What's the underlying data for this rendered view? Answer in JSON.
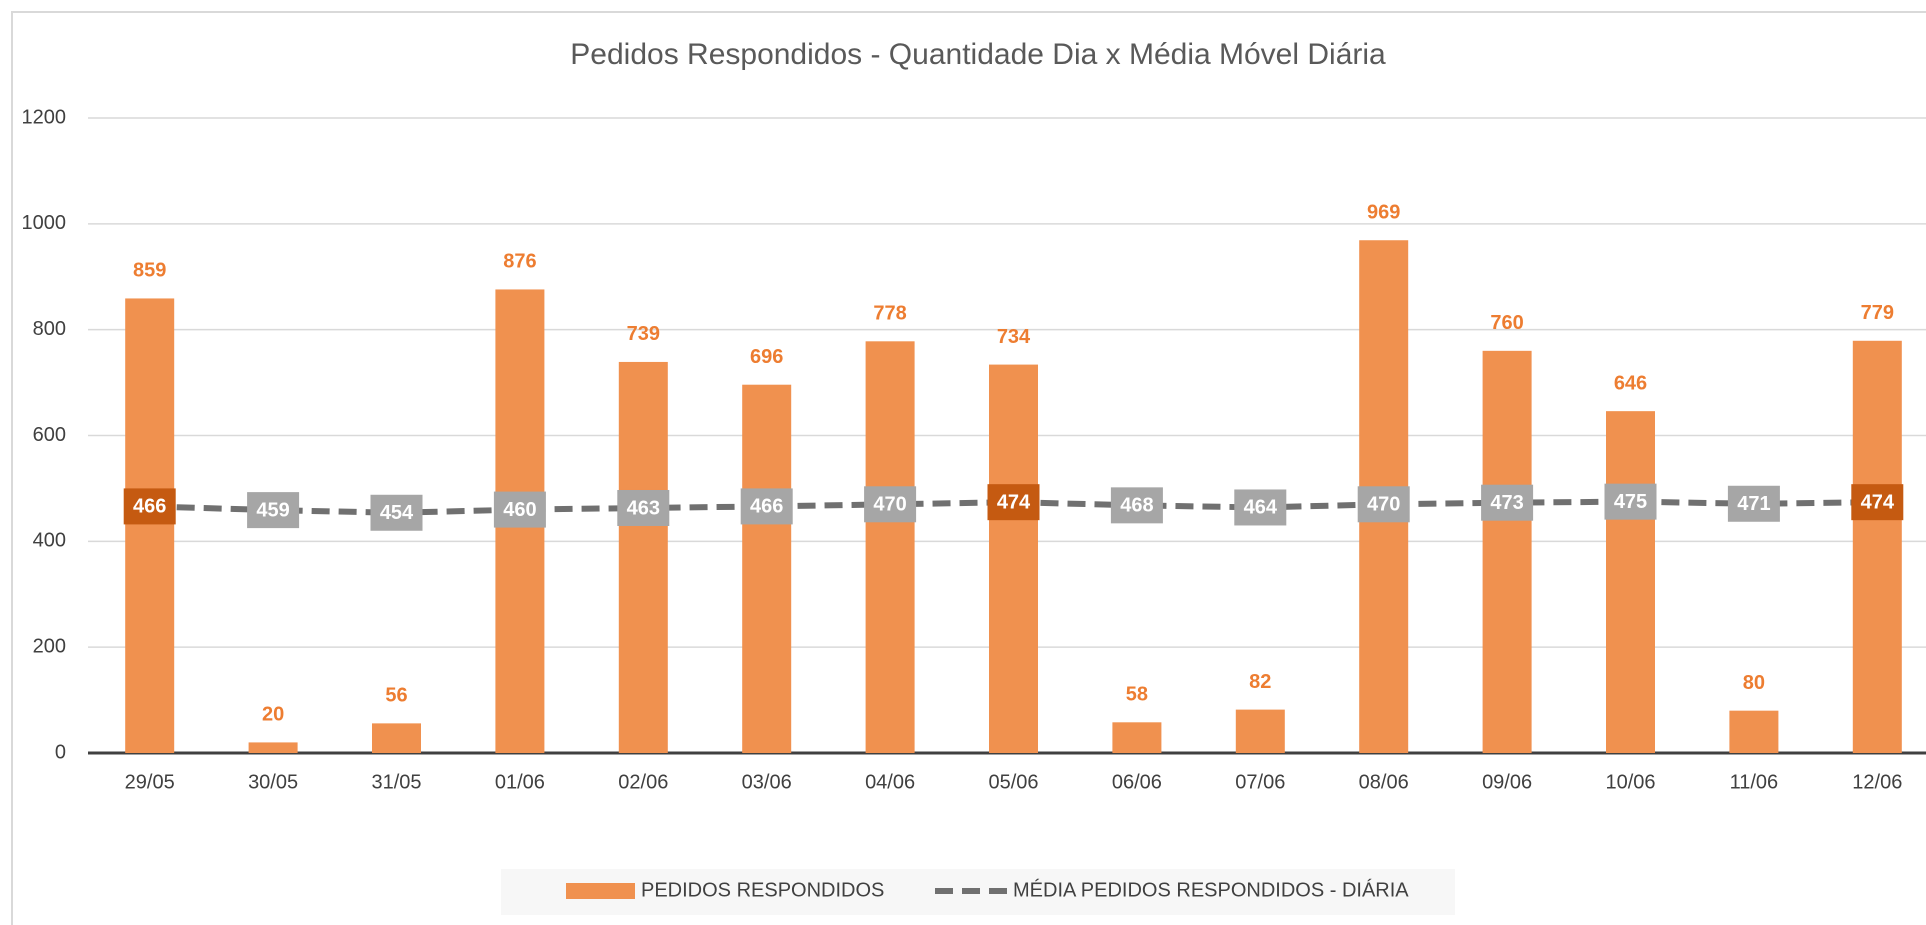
{
  "chart_data": {
    "type": "bar_line",
    "title": "Pedidos Respondidos - Quantidade Dia x Média Móvel Diária",
    "categories": [
      "29/05",
      "30/05",
      "31/05",
      "01/06",
      "02/06",
      "03/06",
      "04/06",
      "05/06",
      "06/06",
      "07/06",
      "08/06",
      "09/06",
      "10/06",
      "11/06",
      "12/06"
    ],
    "series": [
      {
        "name": "PEDIDOS RESPONDIDOS",
        "type": "bar",
        "color": "#f0914f",
        "label_color": "#ed7d31",
        "values": [
          859,
          20,
          56,
          876,
          739,
          696,
          778,
          734,
          58,
          82,
          969,
          760,
          646,
          80,
          779
        ]
      },
      {
        "name": "MÉDIA PEDIDOS RESPONDIDOS - DIÁRIA",
        "type": "line",
        "color": "#707070",
        "dashed": true,
        "values": [
          466,
          459,
          454,
          460,
          463,
          466,
          470,
          474,
          468,
          464,
          470,
          473,
          475,
          471,
          474
        ],
        "label_colors": [
          "#c55a11",
          "#a6a6a6",
          "#a6a6a6",
          "#a6a6a6",
          "#a6a6a6",
          "#a6a6a6",
          "#a6a6a6",
          "#c55a11",
          "#a6a6a6",
          "#a6a6a6",
          "#a6a6a6",
          "#a6a6a6",
          "#a6a6a6",
          "#a6a6a6",
          "#c55a11"
        ]
      }
    ],
    "ylim": [
      0,
      1200
    ],
    "yticks": [
      0,
      200,
      400,
      600,
      800,
      1000,
      1200
    ],
    "grid": true,
    "legend": "bottom"
  }
}
